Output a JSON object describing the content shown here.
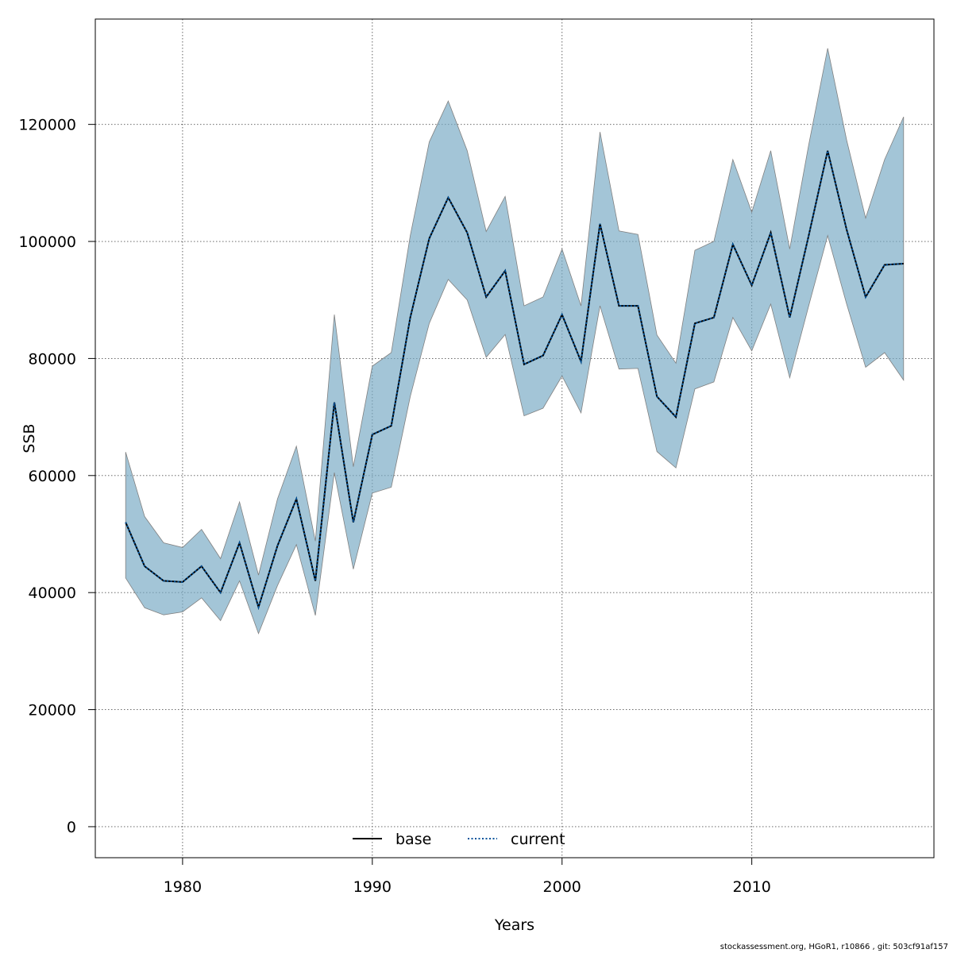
{
  "chart_data": {
    "type": "line",
    "xlabel": "Years",
    "ylabel": "SSB",
    "xlim": [
      1975.4,
      2019.6
    ],
    "ylim": [
      -5300,
      138000
    ],
    "x_ticks": [
      1980,
      1990,
      2000,
      2010
    ],
    "y_ticks": [
      0,
      20000,
      40000,
      60000,
      80000,
      100000,
      120000
    ],
    "grid": true,
    "legend_position": "bottom-center",
    "band_color": "#77a9c4",
    "band_edge_color": "#808080",
    "legend": [
      {
        "label": "base",
        "style": "solid",
        "color": "#000000"
      },
      {
        "label": "current",
        "style": "dotted",
        "color": "#00539b"
      }
    ],
    "x": [
      1977,
      1978,
      1979,
      1980,
      1981,
      1982,
      1983,
      1984,
      1985,
      1986,
      1987,
      1988,
      1989,
      1990,
      1991,
      1992,
      1993,
      1994,
      1995,
      1996,
      1997,
      1998,
      1999,
      2000,
      2001,
      2002,
      2003,
      2004,
      2005,
      2006,
      2007,
      2008,
      2009,
      2010,
      2011,
      2012,
      2013,
      2014,
      2015,
      2016,
      2017,
      2018
    ],
    "series": [
      {
        "name": "base",
        "values": [
          52000,
          44500,
          42000,
          41800,
          44500,
          40000,
          48500,
          37500,
          48000,
          56000,
          42000,
          72500,
          52000,
          67000,
          68500,
          87000,
          100500,
          107500,
          101500,
          90500,
          95000,
          79000,
          80500,
          87500,
          79500,
          103000,
          89000,
          89000,
          73500,
          70000,
          86000,
          87000,
          99500,
          92500,
          101500,
          87000,
          101000,
          115500,
          102000,
          90500,
          96000,
          96200
        ]
      },
      {
        "name": "current",
        "values": [
          52000,
          44500,
          42000,
          41800,
          44500,
          40000,
          48500,
          37500,
          48000,
          56000,
          42000,
          72500,
          52000,
          67000,
          68500,
          87000,
          100500,
          107500,
          101500,
          90500,
          95000,
          79000,
          80500,
          87500,
          79500,
          103000,
          89000,
          89000,
          73500,
          70000,
          86000,
          87000,
          99500,
          92500,
          101500,
          87000,
          101000,
          115500,
          102000,
          90500,
          96000,
          96200
        ]
      }
    ],
    "band_upper": [
      64000,
      53000,
      48500,
      47700,
      50800,
      45800,
      55500,
      43000,
      56000,
      65000,
      48800,
      87500,
      61500,
      78700,
      81000,
      101000,
      117000,
      124000,
      115500,
      101700,
      107700,
      89000,
      90500,
      98700,
      89000,
      118700,
      101800,
      101200,
      84000,
      79200,
      98500,
      100000,
      114000,
      105000,
      115500,
      98700,
      116500,
      133000,
      117300,
      104000,
      114000,
      121300
    ],
    "band_lower": [
      42500,
      37400,
      36200,
      36700,
      39100,
      35200,
      42000,
      33000,
      41200,
      48200,
      36100,
      60500,
      44000,
      57000,
      58000,
      73500,
      86000,
      93500,
      90000,
      80200,
      84100,
      70200,
      71500,
      77000,
      70700,
      89000,
      78200,
      78300,
      64100,
      61300,
      74800,
      76000,
      87000,
      81300,
      89300,
      76700,
      89000,
      101000,
      89300,
      78500,
      81000,
      76300
    ],
    "footer": "stockassessment.org, HGoR1, r10866 , git: 503cf91af157"
  }
}
